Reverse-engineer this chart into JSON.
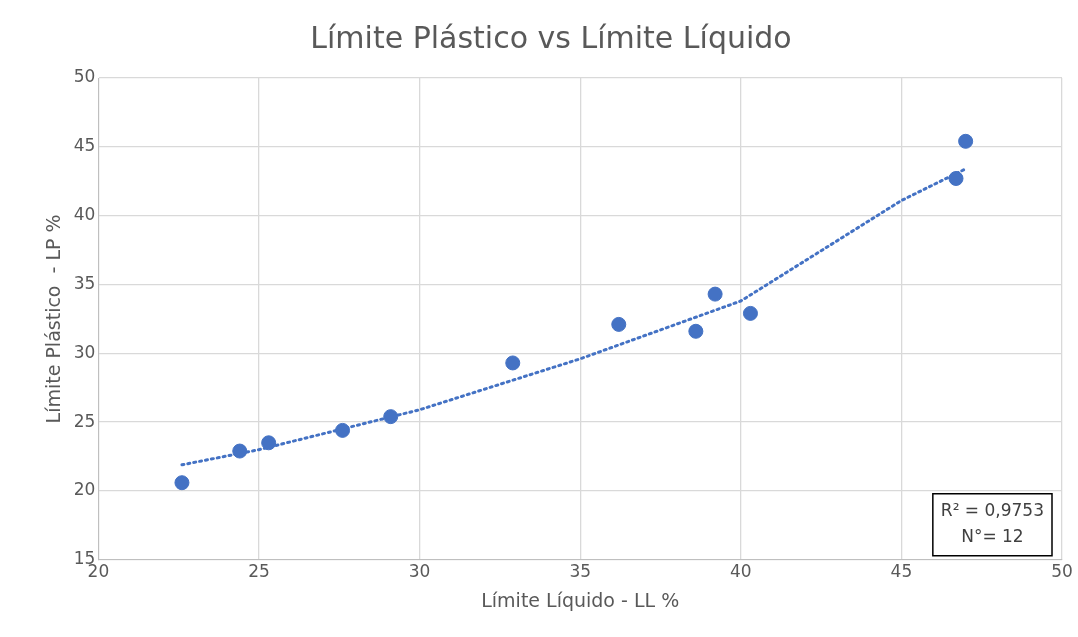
{
  "chart_data": {
    "type": "scatter",
    "title": "Límite Plástico vs Límite Líquido",
    "xlabel": "Límite Líquido - LL %",
    "ylabel": "Límite Plástico  - LP %",
    "xlim": [
      20,
      50
    ],
    "xticks": [
      20,
      25,
      30,
      35,
      40,
      45,
      50
    ],
    "ylim": [
      15,
      50
    ],
    "yticks": [
      15,
      20,
      25,
      30,
      35,
      40,
      45,
      50
    ],
    "grid": true,
    "legend": false,
    "marker": "circle",
    "series": [
      {
        "color": "#4472c4",
        "x": [
          22.6,
          24.4,
          25.3,
          27.6,
          29.1,
          32.9,
          36.2,
          38.6,
          39.2,
          40.3,
          46.7,
          47.0
        ],
        "values": [
          20.6,
          22.9,
          23.5,
          24.4,
          25.4,
          29.3,
          32.1,
          31.6,
          34.3,
          32.9,
          42.7,
          45.4
        ]
      },
      {
        "type": "line",
        "color": "#4472c4",
        "line_style": "dotted",
        "marker": "none",
        "x": [
          22.6,
          25,
          30,
          35,
          40,
          45,
          47
        ],
        "values": [
          21.9,
          23.0,
          25.9,
          29.6,
          33.8,
          41.1,
          43.4
        ]
      }
    ],
    "annotations": [
      "R² = 0,9753",
      "N°= 12"
    ]
  }
}
